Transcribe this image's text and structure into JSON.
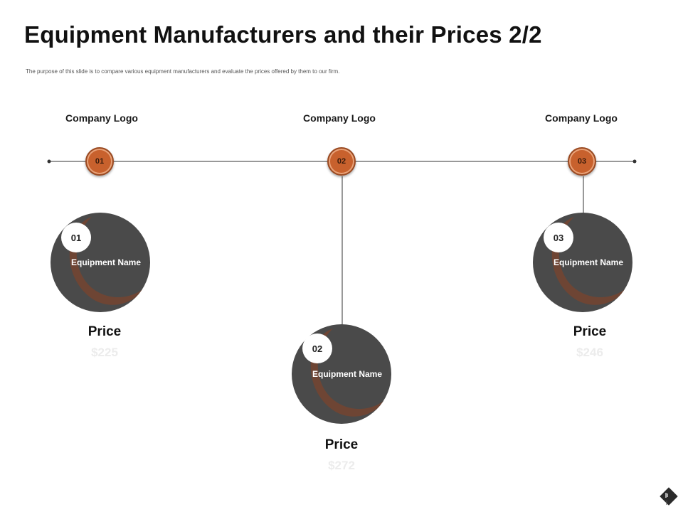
{
  "title": "Equipment Manufacturers and their Prices 2/2",
  "subtitle": "The purpose of this slide is to compare various equipment manufacturers and evaluate the prices offered by them to our firm.",
  "colors": {
    "accent": "#c8612d",
    "circle": "#4a4a4a",
    "arc": "#6e4534",
    "price_value": "#ececec"
  },
  "companies": [
    {
      "logo_label": "Company Logo",
      "step": "01"
    },
    {
      "logo_label": "Company Logo",
      "step": "02"
    },
    {
      "logo_label": "Company Logo",
      "step": "03"
    }
  ],
  "equipment": [
    {
      "number": "01",
      "name": "Equipment Name",
      "price_label": "Price",
      "price": "$225"
    },
    {
      "number": "02",
      "name": "Equipment Name",
      "price_label": "Price",
      "price": "$272"
    },
    {
      "number": "03",
      "name": "Equipment Name",
      "price_label": "Price",
      "price": "$246"
    }
  ],
  "nav_icon": "diamond-navigation-icon"
}
